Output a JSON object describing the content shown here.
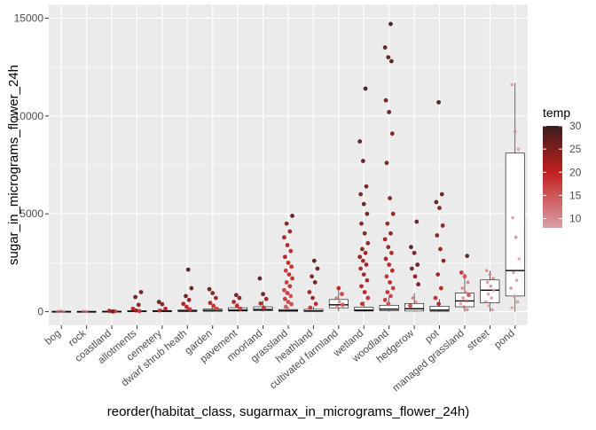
{
  "colors": {
    "panel_bg": "#EBEBEB",
    "grid_major": "#FFFFFF",
    "tick_text": "#4D4D4D",
    "axis_title": "#000000",
    "box_stroke": "#000000",
    "temp_low": "#D9A0A8",
    "temp_mid": "#C21F1F",
    "temp_high": "#3A1E1E"
  },
  "chart_data": {
    "type": "boxplot",
    "xlabel": "reorder(habitat_class, sugarmax_in_micrograms_flower_24h)",
    "ylabel": "sugar_in_micrograms_flower_24h",
    "ylim": [
      -700,
      15700
    ],
    "yticks": [
      0,
      5000,
      10000,
      15000
    ],
    "grid": true,
    "legend": {
      "title": "temp",
      "position": "right",
      "range": [
        8,
        30
      ],
      "ticks": [
        10,
        15,
        20,
        25,
        30
      ]
    },
    "categories": [
      "bog",
      "rock",
      "coastland",
      "allotments",
      "cemetery",
      "dwarf shrub heath",
      "garden",
      "pavement",
      "moorland",
      "grassland",
      "heathland",
      "cultivated farmland",
      "wetland",
      "woodland",
      "hedgerow",
      "pot",
      "managed grassland",
      "street",
      "pond"
    ],
    "boxes": [
      {
        "q1": 0,
        "median": 5,
        "q3": 15,
        "wlo": 0,
        "whi": 40
      },
      {
        "q1": 0,
        "median": 5,
        "q3": 12,
        "wlo": 0,
        "whi": 30
      },
      {
        "q1": 0,
        "median": 10,
        "q3": 20,
        "wlo": 0,
        "whi": 40
      },
      {
        "q1": 5,
        "median": 20,
        "q3": 50,
        "wlo": 0,
        "whi": 110
      },
      {
        "q1": 5,
        "median": 20,
        "q3": 60,
        "wlo": 0,
        "whi": 130
      },
      {
        "q1": 10,
        "median": 30,
        "q3": 90,
        "wlo": 0,
        "whi": 210
      },
      {
        "q1": 20,
        "median": 60,
        "q3": 130,
        "wlo": 0,
        "whi": 290
      },
      {
        "q1": 30,
        "median": 80,
        "q3": 200,
        "wlo": 0,
        "whi": 450
      },
      {
        "q1": 40,
        "median": 110,
        "q3": 250,
        "wlo": 0,
        "whi": 560
      },
      {
        "q1": 20,
        "median": 50,
        "q3": 110,
        "wlo": 0,
        "whi": 250
      },
      {
        "q1": 10,
        "median": 40,
        "q3": 120,
        "wlo": 0,
        "whi": 280
      },
      {
        "q1": 200,
        "median": 350,
        "q3": 620,
        "wlo": 20,
        "whi": 1150
      },
      {
        "q1": 30,
        "median": 80,
        "q3": 230,
        "wlo": 0,
        "whi": 520
      },
      {
        "q1": 50,
        "median": 130,
        "q3": 330,
        "wlo": 0,
        "whi": 740
      },
      {
        "q1": 30,
        "median": 150,
        "q3": 420,
        "wlo": 0,
        "whi": 950
      },
      {
        "q1": 20,
        "median": 80,
        "q3": 280,
        "wlo": 0,
        "whi": 650
      },
      {
        "q1": 250,
        "median": 550,
        "q3": 950,
        "wlo": 0,
        "whi": 1950
      },
      {
        "q1": 450,
        "median": 1100,
        "q3": 1620,
        "wlo": 0,
        "whi": 2100
      },
      {
        "q1": 800,
        "median": 2100,
        "q3": 8100,
        "wlo": 0,
        "whi": 11700
      }
    ],
    "points": [
      {
        "x": 1,
        "y": 10,
        "t": 12
      },
      {
        "x": 1,
        "y": 30,
        "t": 14
      },
      {
        "x": 1,
        "y": 5,
        "t": 10
      },
      {
        "x": 2,
        "y": 15,
        "t": 13
      },
      {
        "x": 2,
        "y": 5,
        "t": 11
      },
      {
        "x": 3,
        "y": 20,
        "t": 16
      },
      {
        "x": 3,
        "y": 40,
        "t": 22
      },
      {
        "x": 3,
        "y": 10,
        "t": 26
      },
      {
        "x": 4,
        "y": 1000,
        "t": 27
      },
      {
        "x": 4,
        "y": 750,
        "t": 26
      },
      {
        "x": 4,
        "y": 350,
        "t": 24
      },
      {
        "x": 4,
        "y": 150,
        "t": 20
      },
      {
        "x": 4,
        "y": 60,
        "t": 22
      },
      {
        "x": 4,
        "y": 30,
        "t": 18
      },
      {
        "x": 5,
        "y": 500,
        "t": 27
      },
      {
        "x": 5,
        "y": 380,
        "t": 25
      },
      {
        "x": 5,
        "y": 150,
        "t": 21
      },
      {
        "x": 5,
        "y": 60,
        "t": 18
      },
      {
        "x": 6,
        "y": 2150,
        "t": 28
      },
      {
        "x": 6,
        "y": 1200,
        "t": 26
      },
      {
        "x": 6,
        "y": 800,
        "t": 27
      },
      {
        "x": 6,
        "y": 600,
        "t": 24
      },
      {
        "x": 6,
        "y": 400,
        "t": 22
      },
      {
        "x": 6,
        "y": 250,
        "t": 20
      },
      {
        "x": 6,
        "y": 120,
        "t": 18
      },
      {
        "x": 7,
        "y": 1150,
        "t": 27
      },
      {
        "x": 7,
        "y": 950,
        "t": 25
      },
      {
        "x": 7,
        "y": 700,
        "t": 23
      },
      {
        "x": 7,
        "y": 450,
        "t": 21
      },
      {
        "x": 7,
        "y": 300,
        "t": 19
      },
      {
        "x": 7,
        "y": 150,
        "t": 17
      },
      {
        "x": 8,
        "y": 850,
        "t": 26
      },
      {
        "x": 8,
        "y": 700,
        "t": 24
      },
      {
        "x": 8,
        "y": 500,
        "t": 22
      },
      {
        "x": 8,
        "y": 300,
        "t": 20
      },
      {
        "x": 8,
        "y": 150,
        "t": 18
      },
      {
        "x": 9,
        "y": 1700,
        "t": 28
      },
      {
        "x": 9,
        "y": 900,
        "t": 26
      },
      {
        "x": 9,
        "y": 650,
        "t": 23
      },
      {
        "x": 9,
        "y": 420,
        "t": 21
      },
      {
        "x": 9,
        "y": 200,
        "t": 19
      },
      {
        "x": 10,
        "y": 4900,
        "t": 27
      },
      {
        "x": 10,
        "y": 4500,
        "t": 25
      },
      {
        "x": 10,
        "y": 4100,
        "t": 23
      },
      {
        "x": 10,
        "y": 3800,
        "t": 22
      },
      {
        "x": 10,
        "y": 3400,
        "t": 21
      },
      {
        "x": 10,
        "y": 3100,
        "t": 20
      },
      {
        "x": 10,
        "y": 2800,
        "t": 21
      },
      {
        "x": 10,
        "y": 2500,
        "t": 20
      },
      {
        "x": 10,
        "y": 2300,
        "t": 19
      },
      {
        "x": 10,
        "y": 2100,
        "t": 18
      },
      {
        "x": 10,
        "y": 1900,
        "t": 20
      },
      {
        "x": 10,
        "y": 1700,
        "t": 19
      },
      {
        "x": 10,
        "y": 1500,
        "t": 18
      },
      {
        "x": 10,
        "y": 1300,
        "t": 19
      },
      {
        "x": 10,
        "y": 1100,
        "t": 17
      },
      {
        "x": 10,
        "y": 950,
        "t": 18
      },
      {
        "x": 10,
        "y": 800,
        "t": 16
      },
      {
        "x": 10,
        "y": 650,
        "t": 18
      },
      {
        "x": 10,
        "y": 500,
        "t": 17
      },
      {
        "x": 10,
        "y": 380,
        "t": 16
      },
      {
        "x": 10,
        "y": 250,
        "t": 15
      },
      {
        "x": 11,
        "y": 2600,
        "t": 28
      },
      {
        "x": 11,
        "y": 2200,
        "t": 27
      },
      {
        "x": 11,
        "y": 1800,
        "t": 25
      },
      {
        "x": 11,
        "y": 1500,
        "t": 26
      },
      {
        "x": 11,
        "y": 1000,
        "t": 23
      },
      {
        "x": 11,
        "y": 700,
        "t": 22
      },
      {
        "x": 11,
        "y": 400,
        "t": 20
      },
      {
        "x": 11,
        "y": 200,
        "t": 18
      },
      {
        "x": 12,
        "y": 1200,
        "t": 20
      },
      {
        "x": 12,
        "y": 900,
        "t": 17
      },
      {
        "x": 12,
        "y": 700,
        "t": 14
      },
      {
        "x": 12,
        "y": 500,
        "t": 13
      },
      {
        "x": 12,
        "y": 350,
        "t": 15
      },
      {
        "x": 12,
        "y": 250,
        "t": 12
      },
      {
        "x": 13,
        "y": 11400,
        "t": 29
      },
      {
        "x": 13,
        "y": 8700,
        "t": 28
      },
      {
        "x": 13,
        "y": 7700,
        "t": 27
      },
      {
        "x": 13,
        "y": 6400,
        "t": 26
      },
      {
        "x": 13,
        "y": 6000,
        "t": 25
      },
      {
        "x": 13,
        "y": 5500,
        "t": 27
      },
      {
        "x": 13,
        "y": 5000,
        "t": 26
      },
      {
        "x": 13,
        "y": 4500,
        "t": 24
      },
      {
        "x": 13,
        "y": 4000,
        "t": 25
      },
      {
        "x": 13,
        "y": 3500,
        "t": 24
      },
      {
        "x": 13,
        "y": 3200,
        "t": 25
      },
      {
        "x": 13,
        "y": 3000,
        "t": 23
      },
      {
        "x": 13,
        "y": 2800,
        "t": 24
      },
      {
        "x": 13,
        "y": 2600,
        "t": 22
      },
      {
        "x": 13,
        "y": 2400,
        "t": 23
      },
      {
        "x": 13,
        "y": 2200,
        "t": 21
      },
      {
        "x": 13,
        "y": 1900,
        "t": 23
      },
      {
        "x": 13,
        "y": 1600,
        "t": 22
      },
      {
        "x": 13,
        "y": 1300,
        "t": 20
      },
      {
        "x": 13,
        "y": 1000,
        "t": 21
      },
      {
        "x": 13,
        "y": 700,
        "t": 19
      },
      {
        "x": 13,
        "y": 400,
        "t": 20
      },
      {
        "x": 14,
        "y": 14700,
        "t": 29
      },
      {
        "x": 14,
        "y": 13500,
        "t": 28
      },
      {
        "x": 14,
        "y": 13000,
        "t": 27
      },
      {
        "x": 14,
        "y": 12800,
        "t": 28
      },
      {
        "x": 14,
        "y": 10800,
        "t": 26
      },
      {
        "x": 14,
        "y": 10200,
        "t": 27
      },
      {
        "x": 14,
        "y": 9100,
        "t": 25
      },
      {
        "x": 14,
        "y": 7600,
        "t": 26
      },
      {
        "x": 14,
        "y": 5800,
        "t": 25
      },
      {
        "x": 14,
        "y": 5000,
        "t": 24
      },
      {
        "x": 14,
        "y": 4500,
        "t": 23
      },
      {
        "x": 14,
        "y": 4000,
        "t": 24
      },
      {
        "x": 14,
        "y": 3700,
        "t": 22
      },
      {
        "x": 14,
        "y": 3300,
        "t": 23
      },
      {
        "x": 14,
        "y": 3000,
        "t": 21
      },
      {
        "x": 14,
        "y": 2700,
        "t": 22
      },
      {
        "x": 14,
        "y": 2400,
        "t": 20
      },
      {
        "x": 14,
        "y": 2100,
        "t": 21
      },
      {
        "x": 14,
        "y": 1800,
        "t": 19
      },
      {
        "x": 14,
        "y": 1500,
        "t": 20
      },
      {
        "x": 14,
        "y": 1200,
        "t": 18
      },
      {
        "x": 14,
        "y": 1000,
        "t": 19
      },
      {
        "x": 14,
        "y": 800,
        "t": 17
      },
      {
        "x": 14,
        "y": 600,
        "t": 18
      },
      {
        "x": 14,
        "y": 400,
        "t": 16
      },
      {
        "x": 15,
        "y": 4600,
        "t": 27
      },
      {
        "x": 15,
        "y": 3300,
        "t": 28
      },
      {
        "x": 15,
        "y": 3000,
        "t": 26
      },
      {
        "x": 15,
        "y": 2400,
        "t": 27
      },
      {
        "x": 15,
        "y": 2200,
        "t": 25
      },
      {
        "x": 15,
        "y": 1800,
        "t": 24
      },
      {
        "x": 15,
        "y": 1400,
        "t": 26
      },
      {
        "x": 15,
        "y": 700,
        "t": 14
      },
      {
        "x": 15,
        "y": 500,
        "t": 12
      },
      {
        "x": 15,
        "y": 300,
        "t": 16
      },
      {
        "x": 16,
        "y": 10700,
        "t": 28
      },
      {
        "x": 16,
        "y": 6000,
        "t": 26
      },
      {
        "x": 16,
        "y": 5600,
        "t": 27
      },
      {
        "x": 16,
        "y": 5300,
        "t": 25
      },
      {
        "x": 16,
        "y": 4400,
        "t": 24
      },
      {
        "x": 16,
        "y": 3900,
        "t": 25
      },
      {
        "x": 16,
        "y": 3200,
        "t": 23
      },
      {
        "x": 16,
        "y": 2600,
        "t": 24
      },
      {
        "x": 16,
        "y": 1900,
        "t": 22
      },
      {
        "x": 16,
        "y": 1200,
        "t": 21
      },
      {
        "x": 16,
        "y": 700,
        "t": 19
      },
      {
        "x": 16,
        "y": 400,
        "t": 20
      },
      {
        "x": 17,
        "y": 2850,
        "t": 27
      },
      {
        "x": 17,
        "y": 2000,
        "t": 18
      },
      {
        "x": 17,
        "y": 1800,
        "t": 15
      },
      {
        "x": 17,
        "y": 1500,
        "t": 14
      },
      {
        "x": 17,
        "y": 1200,
        "t": 13
      },
      {
        "x": 17,
        "y": 1000,
        "t": 11
      },
      {
        "x": 17,
        "y": 850,
        "t": 15
      },
      {
        "x": 17,
        "y": 700,
        "t": 12
      },
      {
        "x": 17,
        "y": 550,
        "t": 14
      },
      {
        "x": 17,
        "y": 400,
        "t": 10
      },
      {
        "x": 17,
        "y": 250,
        "t": 13
      },
      {
        "x": 17,
        "y": 100,
        "t": 12
      },
      {
        "x": 18,
        "y": 2100,
        "t": 12
      },
      {
        "x": 18,
        "y": 1900,
        "t": 11
      },
      {
        "x": 18,
        "y": 1700,
        "t": 13
      },
      {
        "x": 18,
        "y": 1500,
        "t": 10
      },
      {
        "x": 18,
        "y": 1300,
        "t": 12
      },
      {
        "x": 18,
        "y": 1100,
        "t": 9
      },
      {
        "x": 18,
        "y": 900,
        "t": 11
      },
      {
        "x": 18,
        "y": 700,
        "t": 10
      },
      {
        "x": 18,
        "y": 500,
        "t": 12
      },
      {
        "x": 18,
        "y": 300,
        "t": 9
      },
      {
        "x": 18,
        "y": 100,
        "t": 11
      },
      {
        "x": 19,
        "y": 11600,
        "t": 10
      },
      {
        "x": 19,
        "y": 9200,
        "t": 11
      },
      {
        "x": 19,
        "y": 8300,
        "t": 9
      },
      {
        "x": 19,
        "y": 4800,
        "t": 10
      },
      {
        "x": 19,
        "y": 3800,
        "t": 12
      },
      {
        "x": 19,
        "y": 2700,
        "t": 9
      },
      {
        "x": 19,
        "y": 2000,
        "t": 11
      },
      {
        "x": 19,
        "y": 1600,
        "t": 10
      },
      {
        "x": 19,
        "y": 1200,
        "t": 12
      },
      {
        "x": 19,
        "y": 800,
        "t": 9
      },
      {
        "x": 19,
        "y": 500,
        "t": 11
      },
      {
        "x": 19,
        "y": 200,
        "t": 10
      }
    ]
  }
}
